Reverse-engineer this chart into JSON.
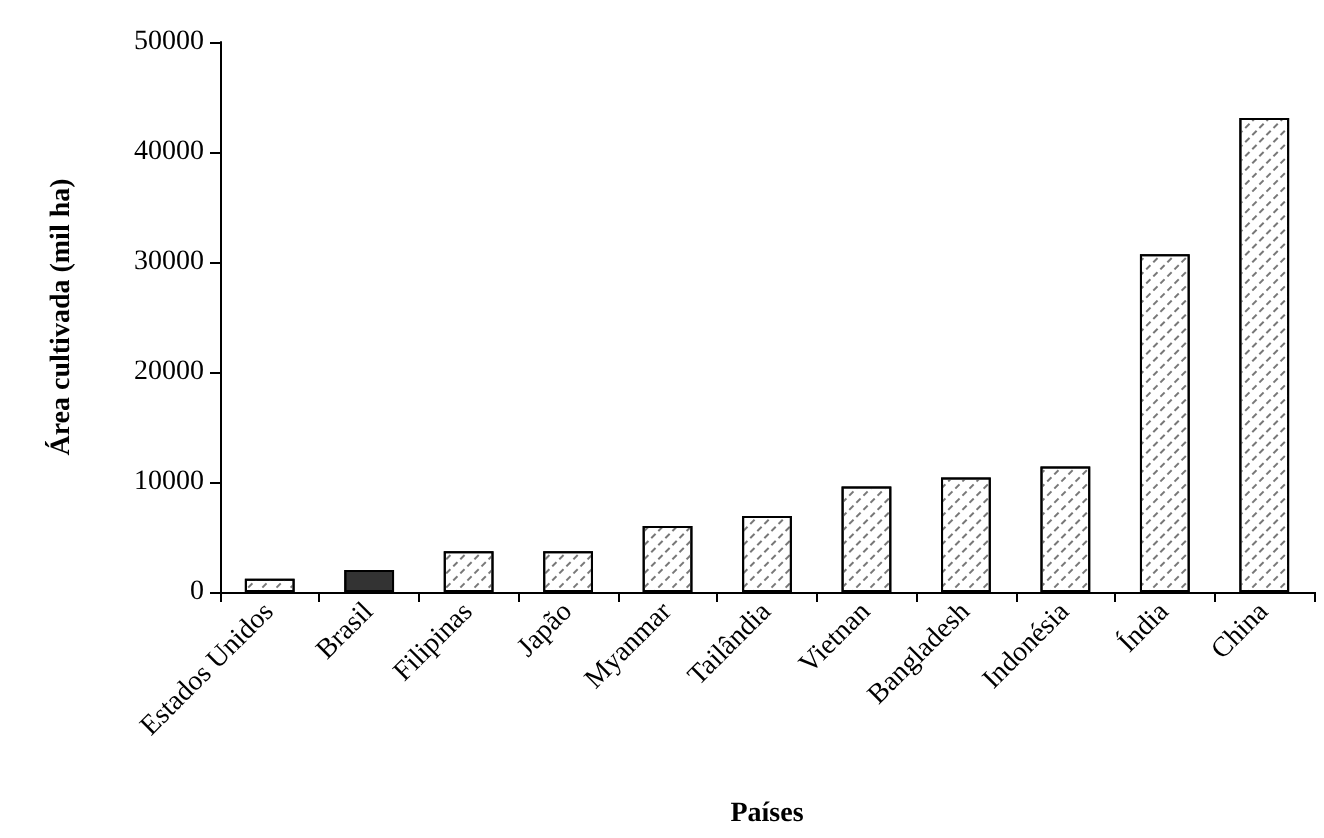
{
  "chart_data": {
    "type": "bar",
    "xlabel": "Países",
    "ylabel": "Área cultivada (mil ha)",
    "categories": [
      "Estados Unidos",
      "Brasil",
      "Filipinas",
      "Japão",
      "Myanmar",
      "Tailândia",
      "Vietnan",
      "Bangladesh",
      "Indonésia",
      "Índia",
      "China"
    ],
    "values": [
      1200,
      2000,
      3700,
      3700,
      6000,
      6900,
      9600,
      10400,
      11400,
      30700,
      43100
    ],
    "colors": [
      "#ffffff",
      "#333333",
      "#ffffff",
      "#ffffff",
      "#ffffff",
      "#ffffff",
      "#ffffff",
      "#ffffff",
      "#ffffff",
      "#ffffff",
      "#ffffff"
    ],
    "ylim": [
      0,
      50000
    ],
    "yticks": [
      0,
      10000,
      20000,
      30000,
      40000,
      50000
    ],
    "grid": false
  }
}
